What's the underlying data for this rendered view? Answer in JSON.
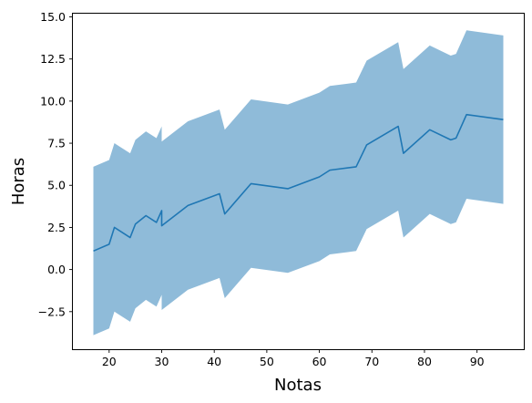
{
  "chart_data": {
    "type": "line",
    "title": "",
    "xlabel": "Notas",
    "ylabel": "Horas",
    "xlim": [
      13.1,
      98.9
    ],
    "ylim": [
      -4.73,
      15.19
    ],
    "x_ticks": [
      20,
      30,
      40,
      50,
      60,
      70,
      80,
      90
    ],
    "x_tick_labels": [
      "20",
      "30",
      "40",
      "50",
      "60",
      "70",
      "80",
      "90"
    ],
    "y_ticks": [
      -2.5,
      0.0,
      2.5,
      5.0,
      7.5,
      10.0,
      12.5,
      15.0
    ],
    "y_tick_labels": [
      "−2.5",
      "0.0",
      "2.5",
      "5.0",
      "7.5",
      "10.0",
      "12.5",
      "15.0"
    ],
    "grid": false,
    "series": [
      {
        "line_color": "#1f77b4",
        "band_color": "#1f77b4",
        "band_opacity": 0.5,
        "band_halfwidth": 5,
        "x": [
          17,
          20,
          21,
          24,
          25,
          27,
          29,
          30,
          30,
          30,
          35,
          41,
          42,
          47,
          54,
          60,
          62,
          67,
          69,
          75,
          76,
          81,
          85,
          86,
          88,
          95
        ],
        "y": [
          1.1,
          1.5,
          2.5,
          1.9,
          2.7,
          3.2,
          2.8,
          3.5,
          2.6,
          2.6,
          3.8,
          4.5,
          3.3,
          5.1,
          4.8,
          5.5,
          5.9,
          6.1,
          7.4,
          8.5,
          6.9,
          8.3,
          7.7,
          7.8,
          9.2,
          8.9
        ]
      }
    ]
  }
}
